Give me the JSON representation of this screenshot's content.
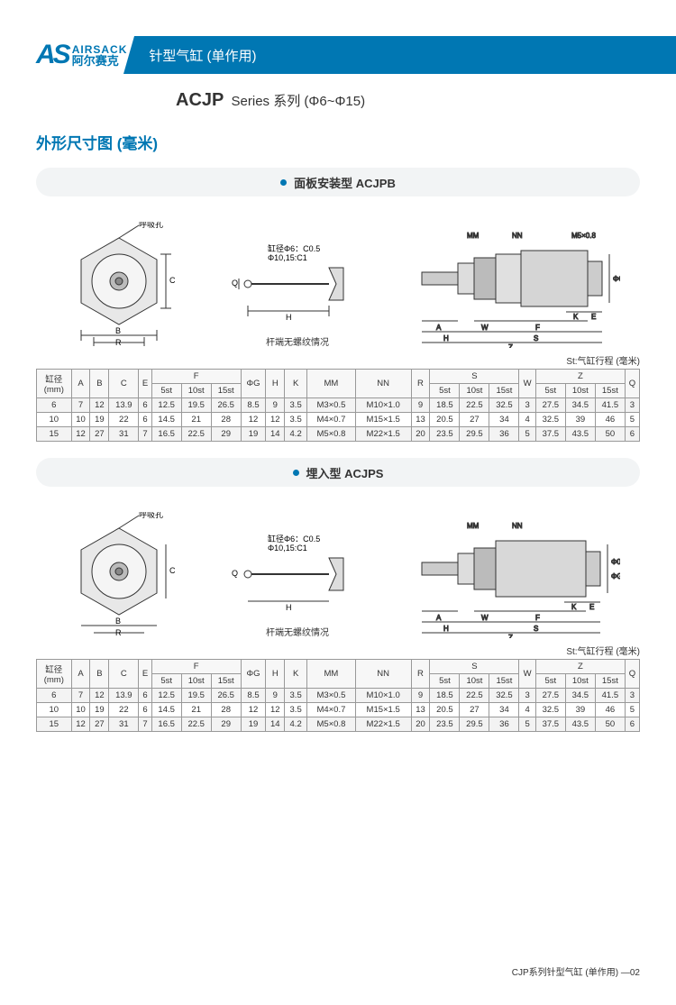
{
  "logo": {
    "en": "AIRSACK",
    "cn": "阿尔赛克"
  },
  "banner": "针型气缸 (单作用)",
  "series_bold": "ACJP",
  "series_rest": "Series 系列 (Φ6~Φ15)",
  "sect": "外形尺寸图 (毫米)",
  "pill1": "面板安装型 ACJPB",
  "pill2": "埋入型 ACJPS",
  "lbl": {
    "breath": "呼吸孔",
    "chamfer1": "缸径Φ6：C0.5",
    "chamfer2": "Φ10,15:C1",
    "rodend": "杆端无螺纹情况"
  },
  "note": "St:气缸行程 (毫米)",
  "footer": "CJP系列针型气缸 (单作用) —02",
  "head": {
    "bore": "缸径\n(mm)",
    "A": "A",
    "B": "B",
    "C": "C",
    "E": "E",
    "F": "F",
    "F5": "5st",
    "F10": "10st",
    "F15": "15st",
    "G": "ΦG",
    "H": "H",
    "K": "K",
    "MM": "MM",
    "NN": "NN",
    "R": "R",
    "S": "S",
    "S5": "5st",
    "S10": "10st",
    "S15": "15st",
    "W": "W",
    "Z": "Z",
    "Z5": "5st",
    "Z10": "10st",
    "Z15": "15st",
    "Q": "Q"
  },
  "tbl1": [
    [
      "6",
      "7",
      "12",
      "13.9",
      "6",
      "12.5",
      "19.5",
      "26.5",
      "8.5",
      "9",
      "3.5",
      "M3×0.5",
      "M10×1.0",
      "9",
      "18.5",
      "22.5",
      "32.5",
      "3",
      "27.5",
      "34.5",
      "41.5",
      "3"
    ],
    [
      "10",
      "10",
      "19",
      "22",
      "6",
      "14.5",
      "21",
      "28",
      "12",
      "12",
      "3.5",
      "M4×0.7",
      "M15×1.5",
      "13",
      "20.5",
      "27",
      "34",
      "4",
      "32.5",
      "39",
      "46",
      "5"
    ],
    [
      "15",
      "12",
      "27",
      "31",
      "7",
      "16.5",
      "22.5",
      "29",
      "19",
      "14",
      "4.2",
      "M5×0.8",
      "M22×1.5",
      "20",
      "23.5",
      "29.5",
      "36",
      "5",
      "37.5",
      "43.5",
      "50",
      "6"
    ]
  ],
  "tbl2": [
    [
      "6",
      "7",
      "12",
      "13.9",
      "6",
      "12.5",
      "19.5",
      "26.5",
      "8.5",
      "9",
      "3.5",
      "M3×0.5",
      "M10×1.0",
      "9",
      "18.5",
      "22.5",
      "32.5",
      "3",
      "27.5",
      "34.5",
      "41.5",
      "3"
    ],
    [
      "10",
      "10",
      "19",
      "22",
      "6",
      "14.5",
      "21",
      "28",
      "12",
      "12",
      "3.5",
      "M4×0.7",
      "M15×1.5",
      "13",
      "20.5",
      "27",
      "34",
      "4",
      "32.5",
      "39",
      "46",
      "5"
    ],
    [
      "15",
      "12",
      "27",
      "31",
      "7",
      "16.5",
      "22.5",
      "29",
      "19",
      "14",
      "4.2",
      "M5×0.8",
      "M22×1.5",
      "20",
      "23.5",
      "29.5",
      "36",
      "5",
      "37.5",
      "43.5",
      "50",
      "6"
    ]
  ]
}
